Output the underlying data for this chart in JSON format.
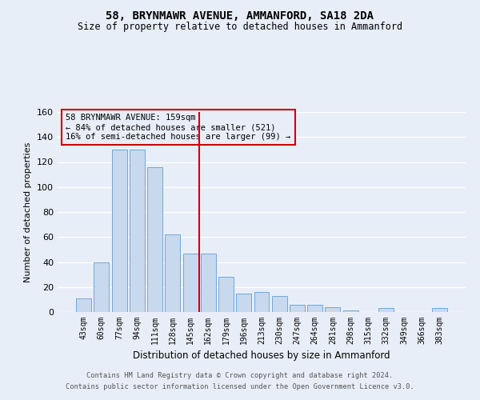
{
  "title": "58, BRYNMAWR AVENUE, AMMANFORD, SA18 2DA",
  "subtitle": "Size of property relative to detached houses in Ammanford",
  "xlabel": "Distribution of detached houses by size in Ammanford",
  "ylabel": "Number of detached properties",
  "categories": [
    "43sqm",
    "60sqm",
    "77sqm",
    "94sqm",
    "111sqm",
    "128sqm",
    "145sqm",
    "162sqm",
    "179sqm",
    "196sqm",
    "213sqm",
    "230sqm",
    "247sqm",
    "264sqm",
    "281sqm",
    "298sqm",
    "315sqm",
    "332sqm",
    "349sqm",
    "366sqm",
    "383sqm"
  ],
  "values": [
    11,
    40,
    130,
    130,
    116,
    62,
    47,
    47,
    28,
    15,
    16,
    13,
    6,
    6,
    4,
    1,
    0,
    3,
    0,
    0,
    3
  ],
  "bar_color": "#c8d9ed",
  "bar_edge_color": "#6fa8d6",
  "background_color": "#e8eef8",
  "grid_color": "#ffffff",
  "vline_color": "#cc0000",
  "annotation_title": "58 BRYNMAWR AVENUE: 159sqm",
  "annotation_line1": "← 84% of detached houses are smaller (521)",
  "annotation_line2": "16% of semi-detached houses are larger (99) →",
  "annotation_box_color": "#cc0000",
  "ylim": [
    0,
    160
  ],
  "yticks": [
    0,
    20,
    40,
    60,
    80,
    100,
    120,
    140,
    160
  ],
  "footer1": "Contains HM Land Registry data © Crown copyright and database right 2024.",
  "footer2": "Contains public sector information licensed under the Open Government Licence v3.0.",
  "title_fontsize": 10,
  "subtitle_fontsize": 8.5,
  "ylabel_fontsize": 8,
  "xlabel_fontsize": 8.5,
  "ytick_fontsize": 8,
  "xtick_fontsize": 7,
  "ann_fontsize": 7.5,
  "footer_fontsize": 6.2
}
